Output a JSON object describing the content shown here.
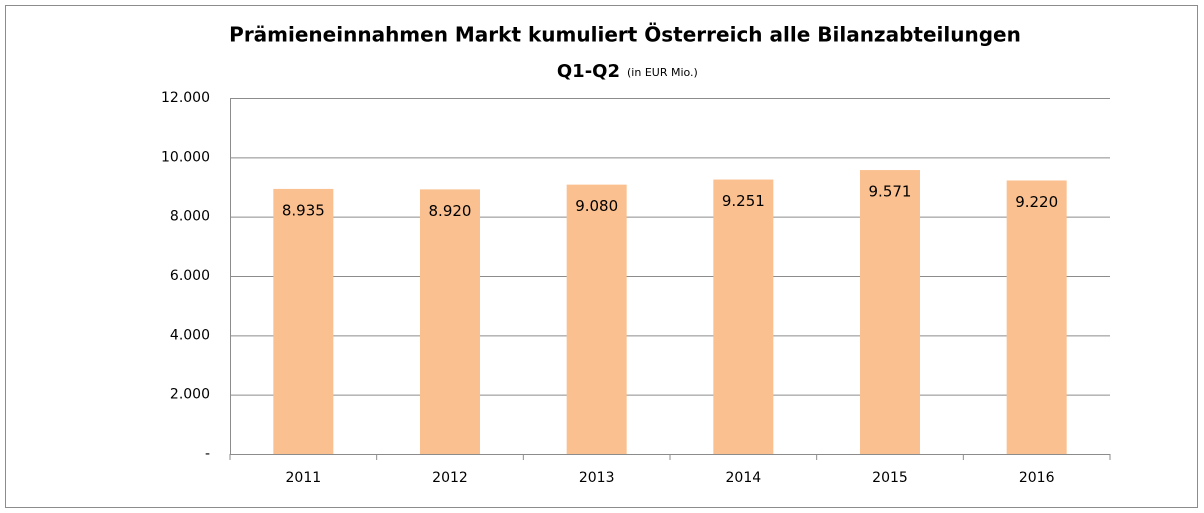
{
  "chart_data": {
    "type": "bar",
    "title": "Prämieneinnahmen Markt kumuliert Österreich alle Bilanzabteilungen",
    "subtitle": "Q1-Q2",
    "unit_note": "(in EUR Mio.)",
    "categories": [
      "2011",
      "2012",
      "2013",
      "2014",
      "2015",
      "2016"
    ],
    "values": [
      8935,
      8920,
      9080,
      9251,
      9571,
      9220
    ],
    "value_labels": [
      "8.935",
      "8.920",
      "9.080",
      "9.251",
      "9.571",
      "9.220"
    ],
    "color": "#fac090",
    "ylim": [
      0,
      12000
    ],
    "yticks": [
      {
        "value": 0,
        "label": "-"
      },
      {
        "value": 2000,
        "label": "2.000"
      },
      {
        "value": 4000,
        "label": "4.000"
      },
      {
        "value": 6000,
        "label": "6.000"
      },
      {
        "value": 8000,
        "label": "8.000"
      },
      {
        "value": 10000,
        "label": "10.000"
      },
      {
        "value": 12000,
        "label": "12.000"
      }
    ],
    "grid": true
  }
}
